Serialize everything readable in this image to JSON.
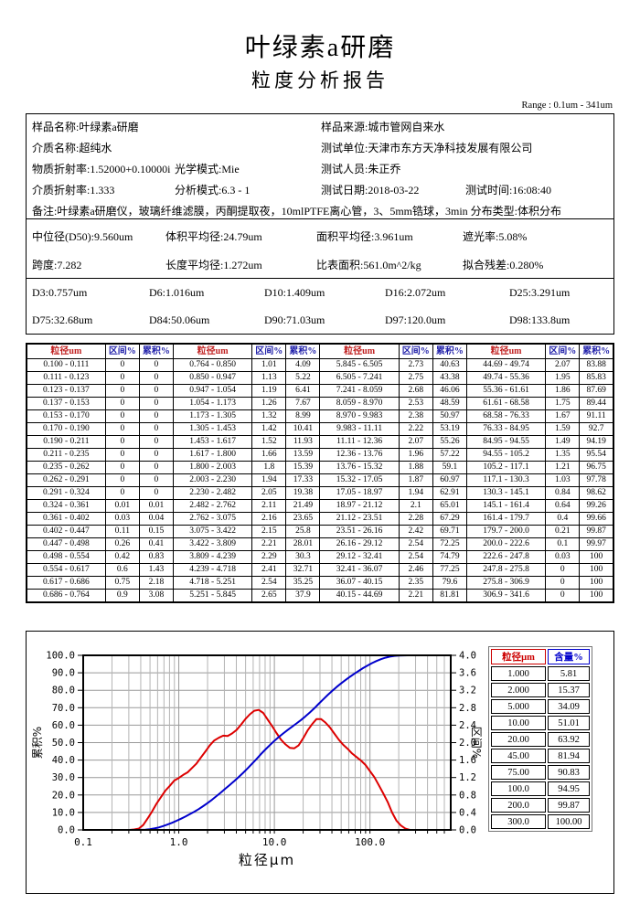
{
  "header": {
    "title": "叶绿素a研磨",
    "subtitle": "粒度分析报告",
    "range_note": "Range : 0.1um - 341um"
  },
  "info_rows": [
    [
      {
        "t": "样品名称:叶绿素a研磨",
        "c": 0
      },
      {
        "t": "样品来源:城市管网自来水",
        "c": 2
      }
    ],
    [
      {
        "t": "介质名称:超纯水",
        "c": 0
      },
      {
        "t": "测试单位:天津市东方天净科技发展有限公司",
        "c": 2
      }
    ],
    [
      {
        "t": "物质折射率:1.52000+0.10000i",
        "c": 0
      },
      {
        "t": "光学模式:Mie",
        "c": 1
      },
      {
        "t": "测试人员:朱正乔",
        "c": 2
      }
    ],
    [
      {
        "t": "介质折射率:1.333",
        "c": 0
      },
      {
        "t": "分析模式:6.3 - 1",
        "c": 1
      },
      {
        "t": "测试日期:2018-03-22",
        "c": 2
      },
      {
        "t": "测试时间:16:08:40",
        "c": 3
      }
    ],
    [
      {
        "t": "备注:叶绿素a研磨仪，玻璃纤维滤膜，丙酮提取夜，10mlPTFE离心管，3、5mm锆球，3min 分布类型:体积分布",
        "c": 0
      }
    ]
  ],
  "stats_rows": [
    [
      {
        "t": "中位径(D50):9.560um",
        "c": 0
      },
      {
        "t": "体积平均径:24.79um",
        "c": 1
      },
      {
        "t": "面积平均径:3.961um",
        "c": 2
      },
      {
        "t": "遮光率:5.08%",
        "c": 3
      }
    ],
    [
      {
        "t": "跨度:7.282",
        "c": 0
      },
      {
        "t": "长度平均径:1.272um",
        "c": 1
      },
      {
        "t": "比表面积:561.0m^2/kg",
        "c": 2
      },
      {
        "t": "拟合残差:0.280%",
        "c": 3
      }
    ]
  ],
  "dval_rows": [
    [
      {
        "t": "D3:0.757um",
        "c": 0
      },
      {
        "t": "D6:1.016um",
        "c": 1
      },
      {
        "t": "D10:1.409um",
        "c": 2
      },
      {
        "t": "D16:2.072um",
        "c": 3
      },
      {
        "t": "D25:3.291um",
        "c": 4
      }
    ],
    [
      {
        "t": "D75:32.68um",
        "c": 0
      },
      {
        "t": "D84:50.06um",
        "c": 1
      },
      {
        "t": "D90:71.03um",
        "c": 2
      },
      {
        "t": "D97:120.0um",
        "c": 3
      },
      {
        "t": "D98:133.8um",
        "c": 4
      }
    ]
  ],
  "main_table": {
    "col_headers": [
      "粒径um",
      "区间%",
      "累积%"
    ],
    "groups": 4,
    "rows_per_group": 19
  },
  "chart_data": {
    "type": "line",
    "xlabel": "粒径μm",
    "ylabel_left": "累积%",
    "ylabel_right": "区间%",
    "x_scale": "log",
    "xlim": [
      0.1,
      700
    ],
    "ylim_left": [
      0,
      100
    ],
    "ylim_right": [
      0,
      4
    ],
    "x_tick_values": [
      0.1,
      1,
      10,
      100
    ],
    "x_tick_labels": [
      "0.1",
      "1.0",
      "10.0",
      "100.0"
    ],
    "left_tick_labels": [
      "0.0",
      "10.0",
      "20.0",
      "30.0",
      "40.0",
      "50.0",
      "60.0",
      "70.0",
      "80.0",
      "90.0",
      "100.0"
    ],
    "right_tick_labels": [
      "0.0",
      "0.4",
      "0.8",
      "1.2",
      "1.6",
      "2.0",
      "2.4",
      "2.8",
      "3.2",
      "3.6",
      "4.0"
    ],
    "grid": true,
    "colors": {
      "cumulative": "#0000cc",
      "interval": "#dd0000",
      "grid_major": "#999999",
      "grid_minor": "#b4b4b4"
    },
    "bins": [
      [
        "0.100 - 0.111",
        0,
        0
      ],
      [
        "0.111 - 0.123",
        0,
        0
      ],
      [
        "0.123 - 0.137",
        0,
        0
      ],
      [
        "0.137 - 0.153",
        0,
        0
      ],
      [
        "0.153 - 0.170",
        0,
        0
      ],
      [
        "0.170 - 0.190",
        0,
        0
      ],
      [
        "0.190 - 0.211",
        0,
        0
      ],
      [
        "0.211 - 0.235",
        0,
        0
      ],
      [
        "0.235 - 0.262",
        0,
        0
      ],
      [
        "0.262 - 0.291",
        0,
        0
      ],
      [
        "0.291 - 0.324",
        0,
        0
      ],
      [
        "0.324 - 0.361",
        0.01,
        0.01
      ],
      [
        "0.361 - 0.402",
        0.03,
        0.04
      ],
      [
        "0.402 - 0.447",
        0.11,
        0.15
      ],
      [
        "0.447 - 0.498",
        0.26,
        0.41
      ],
      [
        "0.498 - 0.554",
        0.42,
        0.83
      ],
      [
        "0.554 - 0.617",
        0.6,
        1.43
      ],
      [
        "0.617 - 0.686",
        0.75,
        2.18
      ],
      [
        "0.686 - 0.764",
        0.9,
        3.08
      ],
      [
        "0.764 - 0.850",
        1.01,
        4.09
      ],
      [
        "0.850 - 0.947",
        1.13,
        5.22
      ],
      [
        "0.947 - 1.054",
        1.19,
        6.41
      ],
      [
        "1.054 - 1.173",
        1.26,
        7.67
      ],
      [
        "1.173 - 1.305",
        1.32,
        8.99
      ],
      [
        "1.305 - 1.453",
        1.42,
        10.41
      ],
      [
        "1.453 - 1.617",
        1.52,
        11.93
      ],
      [
        "1.617 - 1.800",
        1.66,
        13.59
      ],
      [
        "1.800 - 2.003",
        1.8,
        15.39
      ],
      [
        "2.003 - 2.230",
        1.94,
        17.33
      ],
      [
        "2.230 - 2.482",
        2.05,
        19.38
      ],
      [
        "2.482 - 2.762",
        2.11,
        21.49
      ],
      [
        "2.762 - 3.075",
        2.16,
        23.65
      ],
      [
        "3.075 - 3.422",
        2.15,
        25.8
      ],
      [
        "3.422 - 3.809",
        2.21,
        28.01
      ],
      [
        "3.809 - 4.239",
        2.29,
        30.3
      ],
      [
        "4.239 - 4.718",
        2.41,
        32.71
      ],
      [
        "4.718 - 5.251",
        2.54,
        35.25
      ],
      [
        "5.251 - 5.845",
        2.65,
        37.9
      ],
      [
        "5.845 - 6.505",
        2.73,
        40.63
      ],
      [
        "6.505 - 7.241",
        2.75,
        43.38
      ],
      [
        "7.241 - 8.059",
        2.68,
        46.06
      ],
      [
        "8.059 - 8.970",
        2.53,
        48.59
      ],
      [
        "8.970 - 9.983",
        2.38,
        50.97
      ],
      [
        "9.983 - 11.11",
        2.22,
        53.19
      ],
      [
        "11.11 - 12.36",
        2.07,
        55.26
      ],
      [
        "12.36 - 13.76",
        1.96,
        57.22
      ],
      [
        "13.76 - 15.32",
        1.88,
        59.1
      ],
      [
        "15.32 - 17.05",
        1.87,
        60.97
      ],
      [
        "17.05 - 18.97",
        1.94,
        62.91
      ],
      [
        "18.97 - 21.12",
        2.1,
        65.01
      ],
      [
        "21.12 - 23.51",
        2.28,
        67.29
      ],
      [
        "23.51 - 26.16",
        2.42,
        69.71
      ],
      [
        "26.16 - 29.12",
        2.54,
        72.25
      ],
      [
        "29.12 - 32.41",
        2.54,
        74.79
      ],
      [
        "32.41 - 36.07",
        2.46,
        77.25
      ],
      [
        "36.07 - 40.15",
        2.35,
        79.6
      ],
      [
        "40.15 - 44.69",
        2.21,
        81.81
      ],
      [
        "44.69 - 49.74",
        2.07,
        83.88
      ],
      [
        "49.74 - 55.36",
        1.95,
        85.83
      ],
      [
        "55.36 - 61.61",
        1.86,
        87.69
      ],
      [
        "61.61 - 68.58",
        1.75,
        89.44
      ],
      [
        "68.58 - 76.33",
        1.67,
        91.11
      ],
      [
        "76.33 - 84.95",
        1.59,
        92.7
      ],
      [
        "84.95 - 94.55",
        1.49,
        94.19
      ],
      [
        "94.55 - 105.2",
        1.35,
        95.54
      ],
      [
        "105.2 - 117.1",
        1.21,
        96.75
      ],
      [
        "117.1 - 130.3",
        1.03,
        97.78
      ],
      [
        "130.3 - 145.1",
        0.84,
        98.62
      ],
      [
        "145.1 - 161.4",
        0.64,
        99.26
      ],
      [
        "161.4 - 179.7",
        0.4,
        99.66
      ],
      [
        "179.7 - 200.0",
        0.21,
        99.87
      ],
      [
        "200.0 - 222.6",
        0.1,
        99.97
      ],
      [
        "222.6 - 247.8",
        0.03,
        100
      ],
      [
        "247.8 - 275.8",
        0,
        100
      ],
      [
        "275.8 - 306.9",
        0,
        100
      ],
      [
        "306.9 - 341.6",
        0,
        100
      ]
    ]
  },
  "side_table": {
    "headers": [
      "粒径μm",
      "含量%"
    ],
    "header_colors": [
      "#cc0000",
      "#0000cc"
    ],
    "rows": [
      [
        "1.000",
        "5.81"
      ],
      [
        "2.000",
        "15.37"
      ],
      [
        "5.000",
        "34.09"
      ],
      [
        "10.00",
        "51.01"
      ],
      [
        "20.00",
        "63.92"
      ],
      [
        "45.00",
        "81.94"
      ],
      [
        "75.00",
        "90.83"
      ],
      [
        "100.0",
        "94.95"
      ],
      [
        "200.0",
        "99.87"
      ],
      [
        "300.0",
        "100.00"
      ]
    ]
  }
}
